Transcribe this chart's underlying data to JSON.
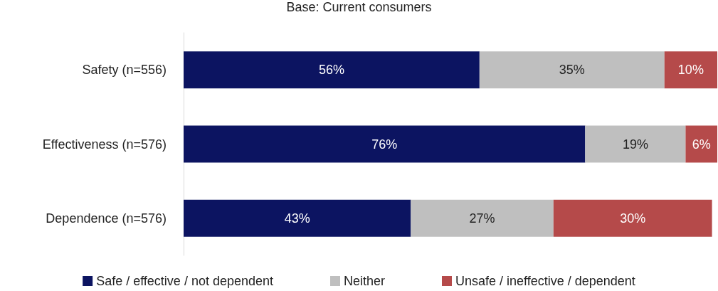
{
  "chart_data": {
    "type": "bar",
    "orientation": "horizontal",
    "stacked": true,
    "subtitle": "Base: Current consumers",
    "categories": [
      "Safety (n=556)",
      "Effectiveness (n=576)",
      "Dependence (n=576)"
    ],
    "series": [
      {
        "name": "Safe / effective / not dependent",
        "color": "#0c1461",
        "values": [
          56,
          76,
          43
        ],
        "value_labels": [
          "56%",
          "76%",
          "43%"
        ]
      },
      {
        "name": "Neither",
        "color": "#bfbfbf",
        "values": [
          35,
          19,
          27
        ],
        "value_labels": [
          "35%",
          "19%",
          "27%"
        ]
      },
      {
        "name": "Unsafe / ineffective / dependent",
        "color": "#b54a4a",
        "values": [
          10,
          6,
          30
        ],
        "value_labels": [
          "10%",
          "6%",
          "30%"
        ]
      }
    ],
    "legend": "bottom"
  }
}
